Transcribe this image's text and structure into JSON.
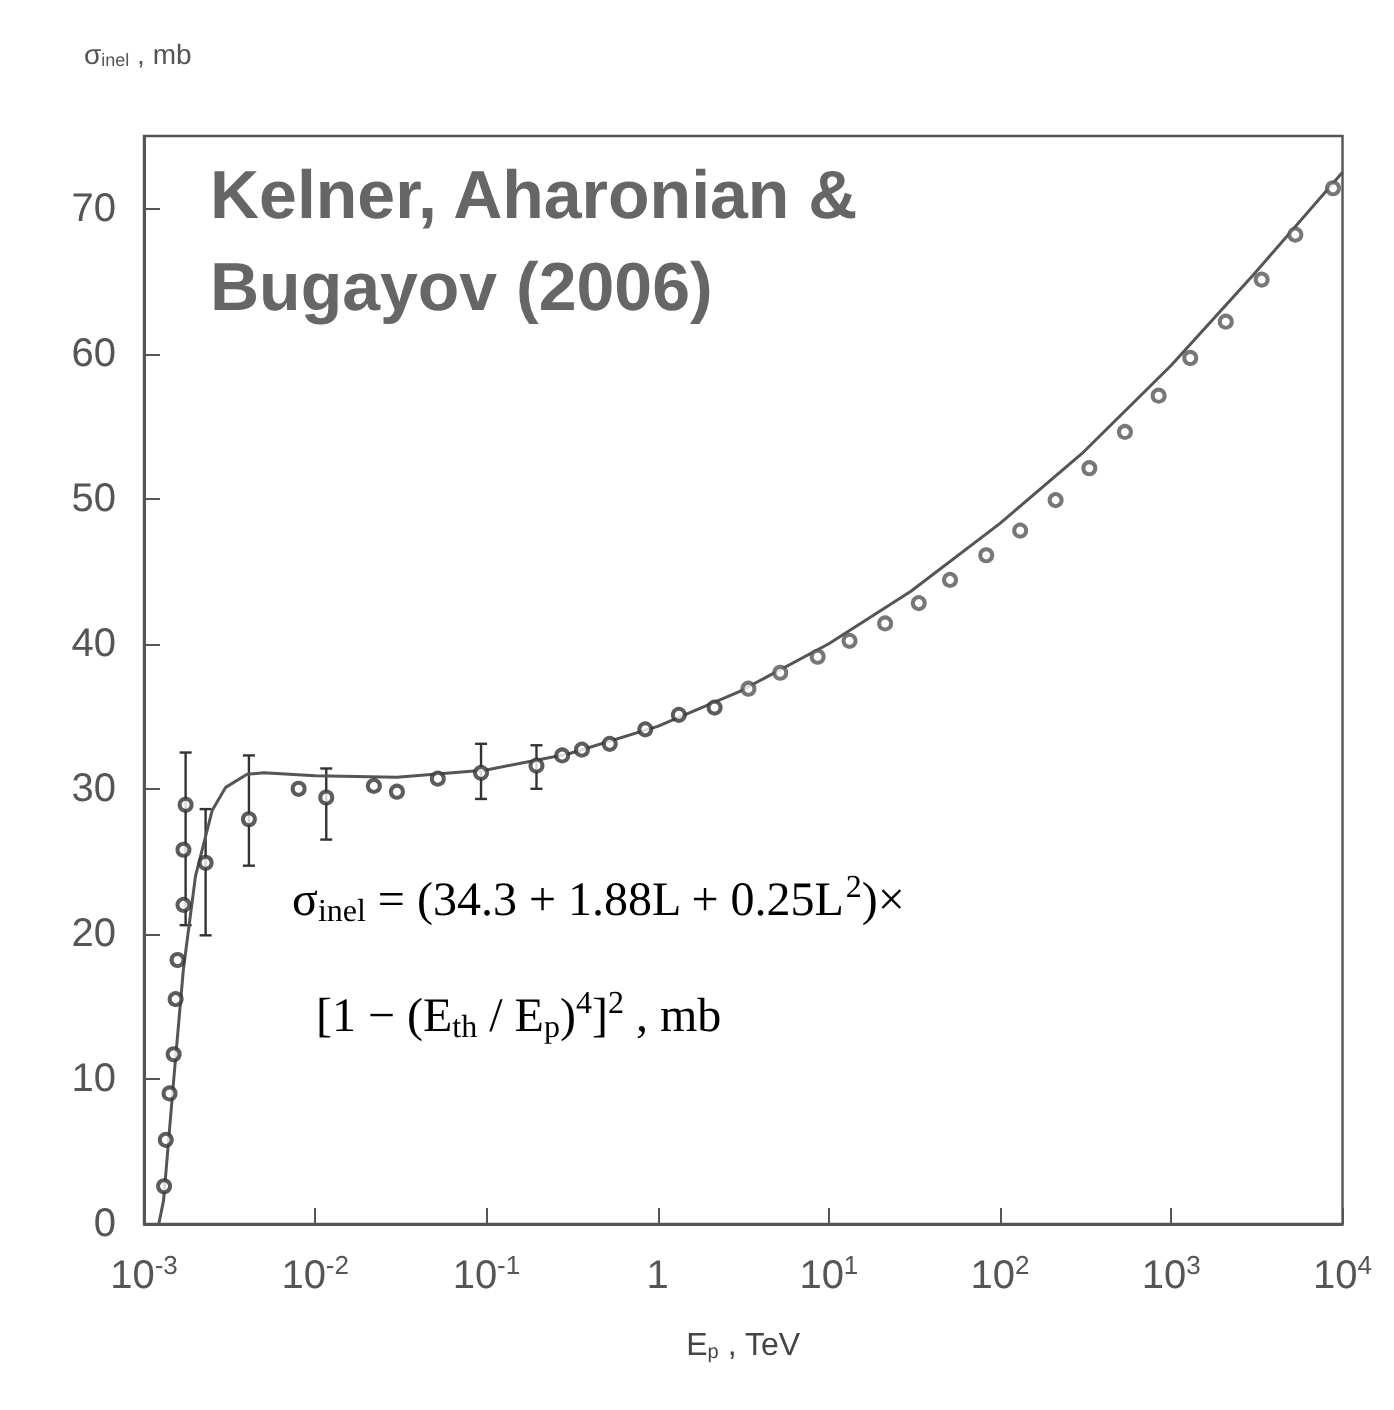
{
  "chart_data": {
    "type": "scatter",
    "title": "Kelner, Aharonian & Bugayov (2006)",
    "xlabel": "E$_{p}$ , TeV",
    "ylabel": "σ$_{inel}$ , mb",
    "annotations": [
      "σ$_{inel}$ = (34.3 + 1.88L + 0.25L$^{2}$)×",
      "[1 − (E$_{th}$ / E$_{p}$)$^{4}$]$^{2}$ , mb"
    ],
    "log": "x",
    "grid": false,
    "marker": "circle",
    "xlim": [
      0.001,
      10000
    ],
    "xticks": [
      {
        "value": 0.001,
        "label": "10$^{-3}$"
      },
      {
        "value": 0.01,
        "label": "10$^{-2}$"
      },
      {
        "value": 0.1,
        "label": "10$^{-1}$"
      },
      1,
      {
        "value": 10,
        "label": "10$^{1}$"
      },
      {
        "value": 100,
        "label": "10$^{2}$"
      },
      {
        "value": 1000,
        "label": "10$^{3}$"
      },
      {
        "value": 10000,
        "label": "10$^{4}$"
      }
    ],
    "ylim": [
      0,
      75
    ],
    "yticks": [
      0,
      10,
      20,
      30,
      40,
      50,
      60,
      70
    ],
    "series": [
      {
        "type": "scatter",
        "color": "#333333",
        "x": [
          0.00131,
          0.00134,
          0.00141,
          0.00149,
          0.00153,
          0.00157,
          0.0017,
          0.0017,
          0.00175,
          0.00229,
          0.0041,
          0.008,
          0.0116,
          0.022,
          0.03,
          0.052,
          0.093,
          0.196,
          0.277,
          0.361,
          0.525,
          0.847,
          1.33,
          2.15
        ],
        "values": [
          2.6,
          5.8,
          9.0,
          11.7,
          15.5,
          18.2,
          22.0,
          25.8,
          28.9,
          24.9,
          27.9,
          30.0,
          29.4,
          30.2,
          29.8,
          30.7,
          31.1,
          31.6,
          32.3,
          32.7,
          33.1,
          34.1,
          35.1,
          35.6
        ],
        "errors": [
          null,
          null,
          null,
          null,
          null,
          null,
          null,
          null,
          [
            20.6,
            32.5
          ],
          [
            19.9,
            28.6
          ],
          [
            24.7,
            32.3
          ],
          null,
          [
            26.5,
            31.4
          ],
          null,
          null,
          null,
          [
            29.3,
            33.1
          ],
          [
            30.0,
            33.0
          ],
          null,
          null,
          null,
          null,
          null,
          null
        ]
      },
      {
        "type": "scatter",
        "color": "#555555",
        "x": [
          3.39,
          5.2,
          8.6,
          13.2,
          21.3,
          33.5,
          51,
          83,
          131,
          211,
          332,
          536,
          843,
          1290,
          2080,
          3370,
          5300,
          8800
        ],
        "values": [
          36.9,
          38.0,
          39.1,
          40.2,
          41.4,
          42.8,
          44.4,
          46.1,
          47.8,
          49.9,
          52.1,
          54.6,
          57.1,
          59.7,
          62.2,
          65.1,
          68.2,
          71.4
        ]
      },
      {
        "type": "line",
        "color": "#555555",
        "marker": "none",
        "x": [
          0.00122,
          0.0013,
          0.0015,
          0.0017,
          0.002,
          0.0025,
          0.003,
          0.004,
          0.005,
          0.01,
          0.03,
          0.1,
          0.3,
          1,
          3,
          10,
          30,
          100,
          300,
          1000,
          3000,
          10000
        ],
        "values": [
          0,
          1.6,
          10.3,
          17.6,
          24.0,
          28.5,
          30.1,
          31.0,
          31.1,
          30.9,
          30.8,
          31.3,
          32.4,
          34.3,
          36.7,
          40.0,
          43.6,
          48.3,
          53.1,
          59.2,
          65.4,
          72.5
        ]
      }
    ]
  }
}
